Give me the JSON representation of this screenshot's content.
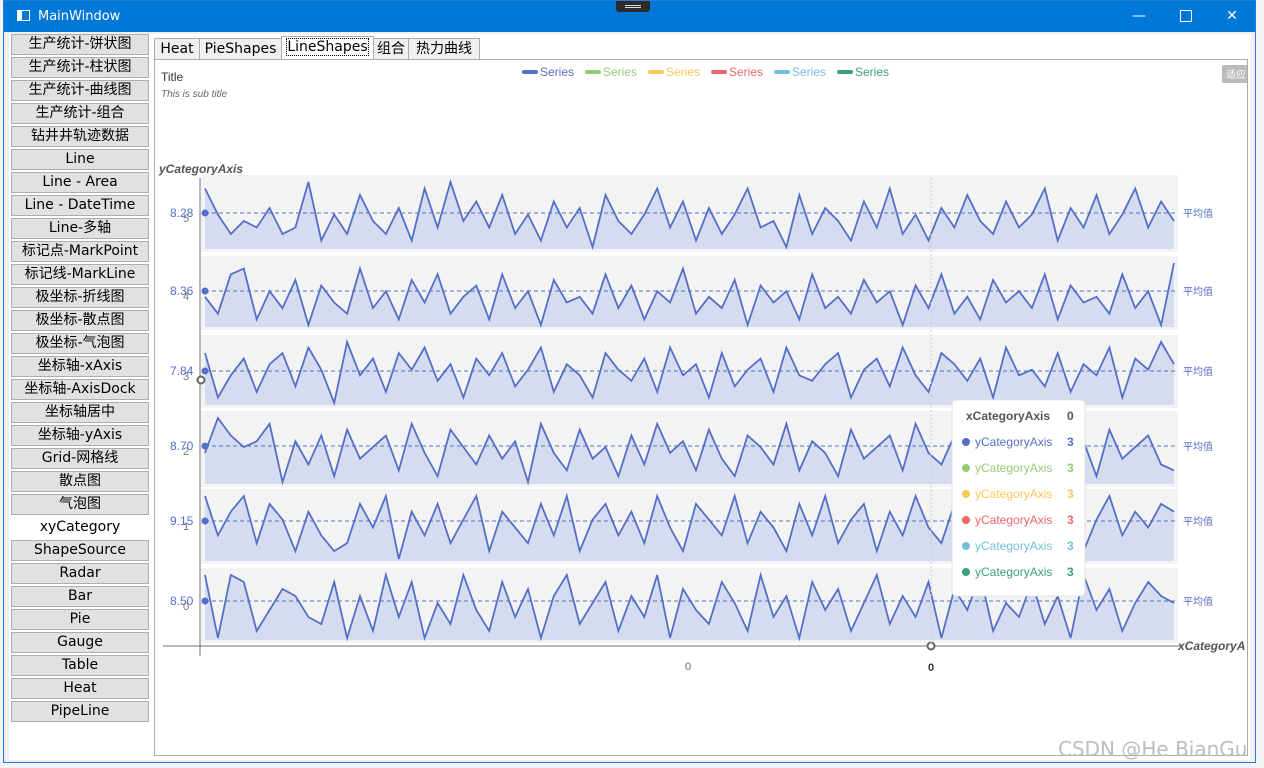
{
  "window": {
    "title": "MainWindow",
    "controls": [
      "minimize-icon",
      "maximize-icon",
      "close-icon"
    ],
    "accent": "#0078d7"
  },
  "sidebar": {
    "items": [
      {
        "label": "生产统计-饼状图"
      },
      {
        "label": "生产统计-柱状图"
      },
      {
        "label": "生产统计-曲线图"
      },
      {
        "label": "生产统计-组合"
      },
      {
        "label": "钻井井轨迹数据"
      },
      {
        "label": "Line"
      },
      {
        "label": "Line - Area"
      },
      {
        "label": "Line - DateTime"
      },
      {
        "label": "Line-多轴"
      },
      {
        "label": "标记点-MarkPoint"
      },
      {
        "label": "标记线-MarkLine"
      },
      {
        "label": "极坐标-折线图"
      },
      {
        "label": "极坐标-散点图"
      },
      {
        "label": "极坐标-气泡图"
      },
      {
        "label": "坐标轴-xAxis"
      },
      {
        "label": "坐标轴-AxisDock"
      },
      {
        "label": "坐标轴居中"
      },
      {
        "label": "坐标轴-yAxis"
      },
      {
        "label": "Grid-网格线"
      },
      {
        "label": "散点图"
      },
      {
        "label": "气泡图"
      },
      {
        "label": "xyCategory",
        "selected": true
      },
      {
        "label": "ShapeSource"
      },
      {
        "label": "Radar"
      },
      {
        "label": "Bar"
      },
      {
        "label": "Pie"
      },
      {
        "label": "Gauge"
      },
      {
        "label": "Table"
      },
      {
        "label": "Heat"
      },
      {
        "label": "PipeLine"
      }
    ]
  },
  "tabs": [
    {
      "label": "Heat"
    },
    {
      "label": "PieShapes"
    },
    {
      "label": "LineShapes",
      "active": true
    },
    {
      "label": "组合"
    },
    {
      "label": "热力曲线"
    }
  ],
  "chart": {
    "title": "Title",
    "subtitle": "This is sub title",
    "fit_button": "适应",
    "y_axis_name": "yCategoryAxis",
    "x_axis_name": "xCategoryA",
    "x_tick_label": "0",
    "x_pointer_label": "0",
    "legend": [
      {
        "name": "Series",
        "color": "#5470c6"
      },
      {
        "name": "Series",
        "color": "#91cc75"
      },
      {
        "name": "Series",
        "color": "#fac858"
      },
      {
        "name": "Series",
        "color": "#ee6666"
      },
      {
        "name": "Series",
        "color": "#73c0de"
      },
      {
        "name": "Series",
        "color": "#3ba272"
      }
    ],
    "tooltip": {
      "header": "xCategoryAxis",
      "header_value": "0",
      "rows": [
        {
          "label": "yCategoryAxis",
          "value": "3",
          "color": "#5470c6"
        },
        {
          "label": "yCategoryAxis",
          "value": "3",
          "color": "#91cc75"
        },
        {
          "label": "yCategoryAxis",
          "value": "3",
          "color": "#fac858"
        },
        {
          "label": "yCategoryAxis",
          "value": "3",
          "color": "#ee6666"
        },
        {
          "label": "yCategoryAxis",
          "value": "3",
          "color": "#73c0de"
        },
        {
          "label": "yCategoryAxis",
          "value": "3",
          "color": "#3ba272"
        }
      ]
    }
  },
  "chart_data": {
    "type": "line",
    "y_categories": [
      "5",
      "4",
      "3",
      "2",
      "1",
      "0"
    ],
    "mark_line_label": "平均值",
    "series": [
      {
        "average": "8.28",
        "values": [
          8.9,
          8.5,
          8.2,
          8.4,
          8.3,
          8.6,
          8.2,
          8.3,
          9.0,
          8.1,
          8.5,
          8.2,
          8.8,
          8.4,
          8.2,
          8.6,
          8.1,
          8.9,
          8.3,
          9.0,
          8.4,
          8.7,
          8.3,
          8.8,
          8.2,
          8.5,
          8.1,
          8.7,
          8.3,
          8.6,
          8.0,
          8.8,
          8.4,
          8.2,
          8.5,
          8.9,
          8.3,
          8.7,
          8.1,
          8.6,
          8.2,
          8.5,
          8.9,
          8.3,
          8.4,
          8.0,
          8.8,
          8.2,
          8.6,
          8.4,
          8.1,
          8.7,
          8.3,
          8.9,
          8.2,
          8.5,
          8.1,
          8.6,
          8.3,
          8.8,
          8.4,
          8.2,
          8.7,
          8.3,
          8.5,
          8.9,
          8.1,
          8.6,
          8.3,
          8.8,
          8.2,
          8.5,
          8.9,
          8.3,
          8.7,
          8.4
        ]
      },
      {
        "average": "8.36",
        "values": [
          8.5,
          8.2,
          8.9,
          9.0,
          8.1,
          8.6,
          8.3,
          8.8,
          8.0,
          8.7,
          8.4,
          8.2,
          9.0,
          8.3,
          8.6,
          8.1,
          8.8,
          8.4,
          8.9,
          8.2,
          8.5,
          8.7,
          8.1,
          8.9,
          8.3,
          8.6,
          8.0,
          8.8,
          8.4,
          8.5,
          8.2,
          8.9,
          8.3,
          8.7,
          8.1,
          8.6,
          8.4,
          9.0,
          8.2,
          8.5,
          8.3,
          8.8,
          8.0,
          8.7,
          8.4,
          8.6,
          8.1,
          8.9,
          8.3,
          8.5,
          8.2,
          8.8,
          8.4,
          8.6,
          8.0,
          8.7,
          8.3,
          8.9,
          8.2,
          8.5,
          8.1,
          8.8,
          8.4,
          8.6,
          8.3,
          8.9,
          8.1,
          8.7,
          8.4,
          8.5,
          8.2,
          8.9,
          8.3,
          8.6,
          8.0,
          9.1
        ]
      },
      {
        "average": "7.84",
        "values": [
          8.4,
          7.6,
          8.0,
          8.3,
          7.7,
          8.2,
          8.4,
          7.8,
          8.5,
          8.1,
          7.5,
          8.6,
          8.0,
          8.3,
          7.7,
          8.4,
          8.1,
          8.5,
          7.9,
          8.2,
          7.6,
          8.3,
          8.0,
          8.4,
          7.8,
          8.1,
          8.5,
          7.7,
          8.2,
          8.0,
          7.6,
          8.4,
          8.1,
          7.9,
          8.3,
          7.7,
          8.5,
          8.0,
          8.2,
          7.6,
          8.4,
          7.8,
          8.1,
          8.3,
          7.7,
          8.5,
          8.0,
          7.9,
          8.2,
          8.4,
          7.6,
          8.1,
          8.3,
          7.8,
          8.5,
          8.0,
          7.7,
          8.4,
          8.2,
          7.9,
          8.3,
          7.6,
          8.5,
          8.0,
          8.1,
          7.8,
          8.4,
          7.7,
          8.2,
          8.0,
          8.5,
          7.6,
          8.3,
          8.1,
          8.6,
          8.2
        ]
      },
      {
        "average": "8.70",
        "values": [
          8.7,
          9.3,
          9.0,
          8.8,
          8.9,
          9.2,
          8.2,
          8.9,
          8.5,
          9.0,
          8.3,
          9.1,
          8.6,
          8.8,
          9.0,
          8.4,
          9.2,
          8.7,
          8.3,
          9.1,
          8.8,
          8.5,
          9.0,
          8.6,
          8.9,
          8.2,
          9.2,
          8.7,
          8.4,
          9.1,
          8.6,
          8.8,
          8.3,
          9.0,
          8.5,
          9.2,
          8.7,
          8.9,
          8.4,
          9.1,
          8.6,
          8.3,
          9.0,
          8.8,
          8.5,
          9.2,
          8.4,
          8.9,
          8.7,
          8.3,
          9.1,
          8.6,
          8.8,
          9.0,
          8.4,
          9.2,
          8.7,
          8.5,
          9.0,
          8.6,
          8.3,
          9.1,
          8.8,
          8.5,
          9.0,
          8.4,
          9.2,
          8.7,
          8.9,
          8.3,
          9.1,
          8.6,
          8.8,
          9.0,
          8.5,
          8.4
        ]
      },
      {
        "average": "9.15",
        "values": [
          9.5,
          9.0,
          9.3,
          9.5,
          8.9,
          9.4,
          9.2,
          8.8,
          9.3,
          9.0,
          8.8,
          8.9,
          9.4,
          9.1,
          9.5,
          8.7,
          9.3,
          9.0,
          9.4,
          8.9,
          9.2,
          9.5,
          8.8,
          9.3,
          9.1,
          8.9,
          9.4,
          9.0,
          9.5,
          8.8,
          9.2,
          9.4,
          9.0,
          9.3,
          8.9,
          9.5,
          9.1,
          8.8,
          9.4,
          9.2,
          9.0,
          9.5,
          8.9,
          9.3,
          9.1,
          8.8,
          9.4,
          9.0,
          9.5,
          8.9,
          9.2,
          9.4,
          8.8,
          9.3,
          9.0,
          9.5,
          9.1,
          8.9,
          9.4,
          9.2,
          8.8,
          9.3,
          9.0,
          9.5,
          8.9,
          9.4,
          9.1,
          9.3,
          8.8,
          9.2,
          9.5,
          9.0,
          9.3,
          9.1,
          9.4,
          9.3
        ]
      },
      {
        "average": "8.50",
        "values": [
          8.9,
          8.0,
          8.9,
          8.8,
          8.1,
          8.4,
          8.7,
          8.6,
          8.3,
          8.2,
          8.8,
          8.0,
          8.6,
          8.1,
          8.9,
          8.3,
          8.8,
          8.0,
          8.5,
          8.2,
          8.9,
          8.4,
          8.1,
          8.8,
          8.3,
          8.7,
          8.0,
          8.6,
          8.9,
          8.2,
          8.5,
          8.8,
          8.1,
          8.6,
          8.3,
          8.9,
          8.0,
          8.7,
          8.4,
          8.2,
          8.8,
          8.5,
          8.1,
          8.9,
          8.3,
          8.6,
          8.0,
          8.8,
          8.4,
          8.7,
          8.1,
          8.5,
          8.9,
          8.2,
          8.6,
          8.3,
          8.8,
          8.0,
          8.7,
          8.4,
          8.9,
          8.1,
          8.5,
          8.3,
          8.8,
          8.2,
          8.6,
          8.0,
          8.9,
          8.4,
          8.7,
          8.1,
          8.5,
          8.8,
          8.6,
          8.5
        ]
      }
    ]
  }
}
